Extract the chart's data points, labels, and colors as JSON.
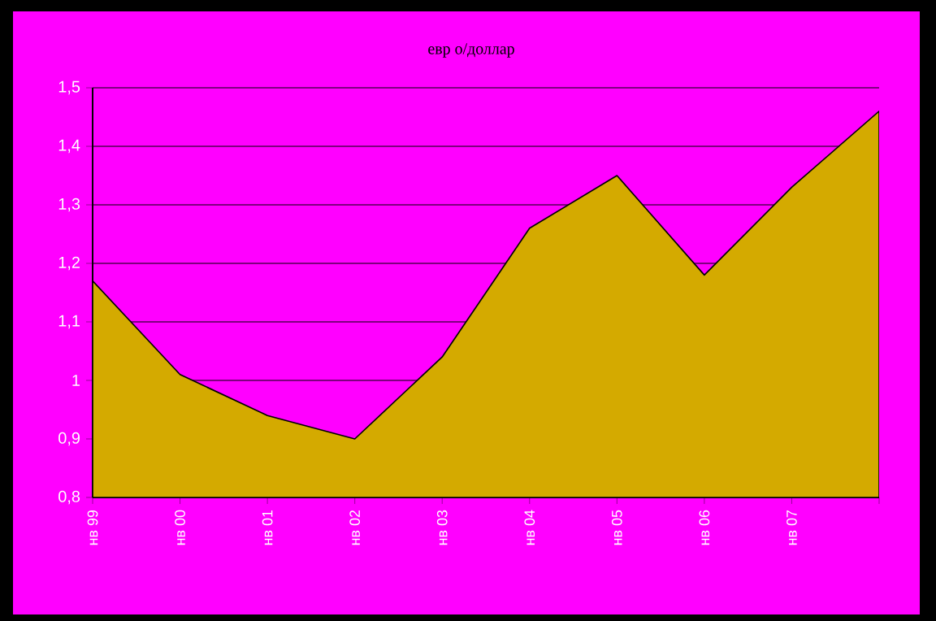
{
  "chart_data": {
    "type": "area",
    "title": "евр о/доллар",
    "categories": [
      "нв 99",
      "нв 00",
      "нв 01",
      "нв 02",
      "нв 03",
      "нв 04",
      "нв 05",
      "нв 06",
      "нв 07",
      null
    ],
    "values": [
      1.17,
      1.01,
      0.94,
      0.9,
      1.04,
      1.26,
      1.35,
      1.18,
      1.33,
      1.46
    ],
    "color": "#d4aa00",
    "ylim": [
      0.8,
      1.5
    ],
    "yticks": [
      {
        "value": 0.8,
        "label": "0,8"
      },
      {
        "value": 0.9,
        "label": "0,9"
      },
      1,
      {
        "value": 1.1,
        "label": "1,1"
      },
      {
        "value": 1.2,
        "label": "1,2"
      },
      {
        "value": 1.3,
        "label": "1,3"
      },
      {
        "value": 1.4,
        "label": "1,4"
      },
      {
        "value": 1.5,
        "label": "1,5"
      }
    ],
    "grid": "y"
  }
}
